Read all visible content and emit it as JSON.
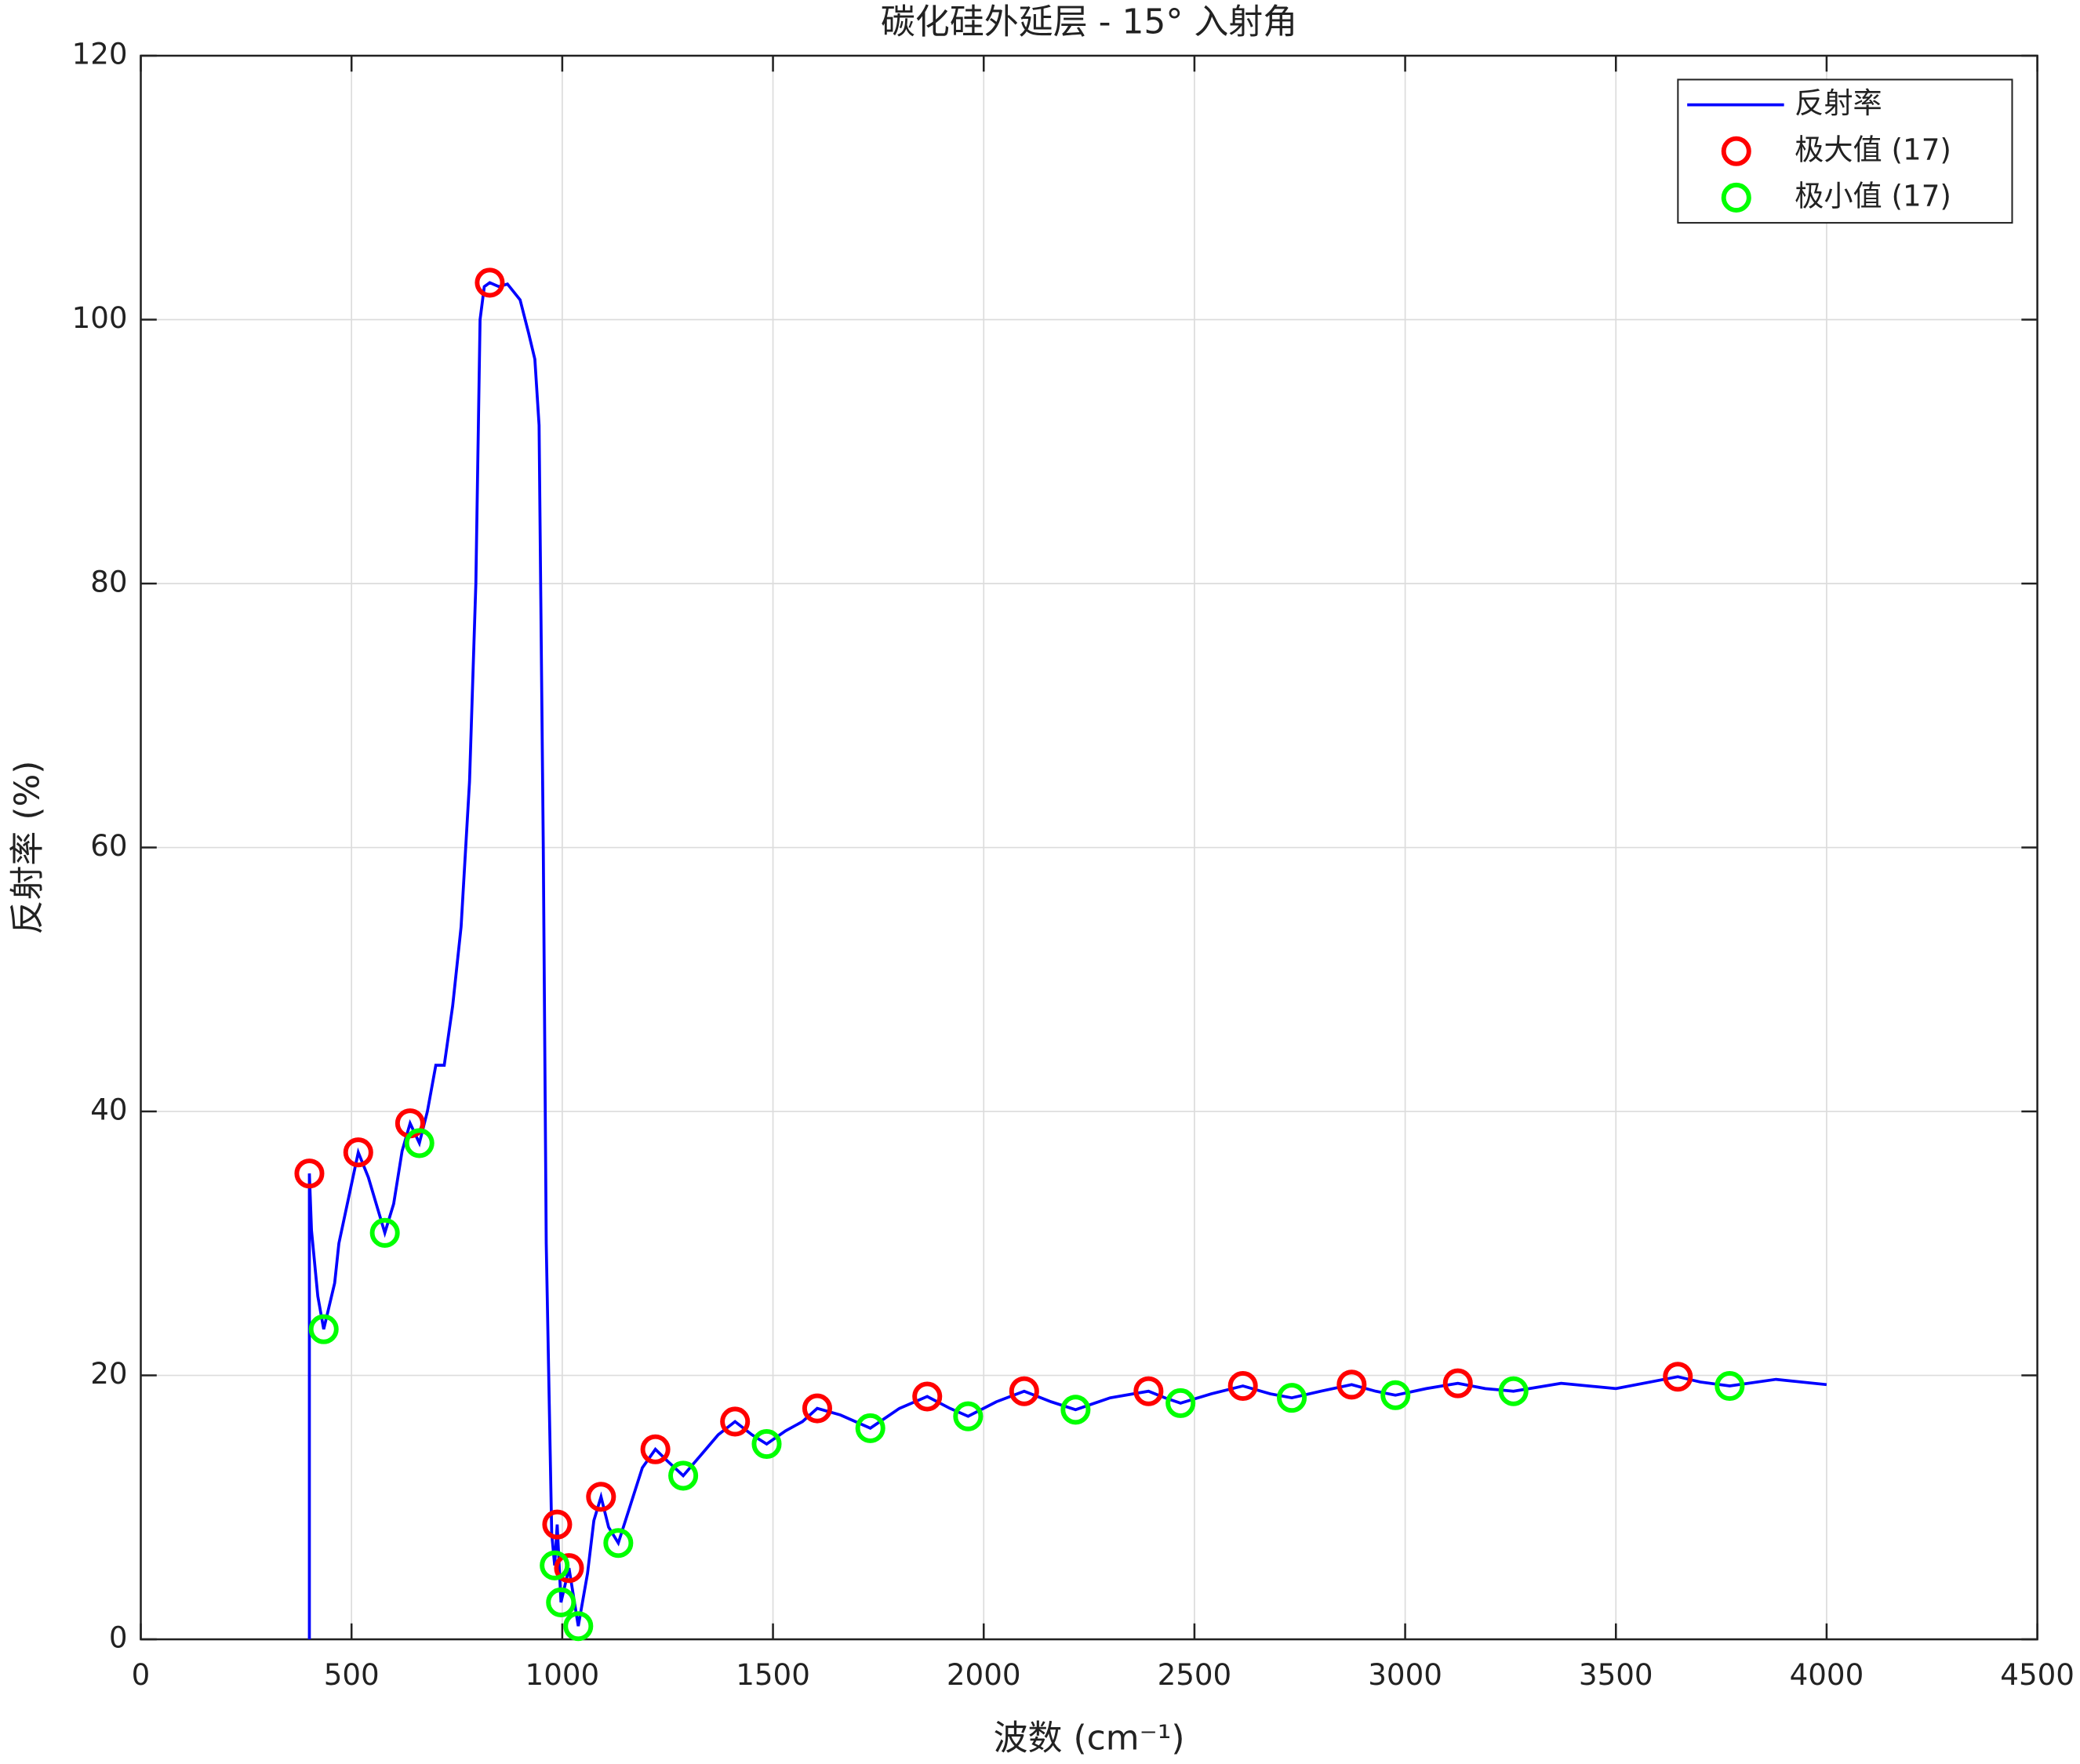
{
  "chart_data": {
    "type": "line",
    "title": "碳化硅外延层 - 15° 入射角",
    "xlabel": "波数 (cm⁻¹)",
    "ylabel": "反射率 (%)",
    "xlim": [
      0,
      4500
    ],
    "xticks": [
      0,
      500,
      1000,
      1500,
      2000,
      2500,
      3000,
      3500,
      4000,
      4500
    ],
    "ylim": [
      0,
      120
    ],
    "yticks": [
      0,
      20,
      40,
      60,
      80,
      100,
      120
    ],
    "grid": true,
    "legend": "upper right",
    "series": [
      {
        "name": "反射率",
        "color": "#0000ff",
        "kind": "line",
        "x": [
          400,
          400,
          405,
          420,
          434,
          460,
          470,
          516,
          540,
          579,
          600,
          620,
          639,
          661,
          680,
          700,
          720,
          740,
          760,
          780,
          795,
          805,
          815,
          828,
          850,
          870,
          900,
          920,
          935,
          945,
          955,
          962,
          975,
          982,
          988,
          997,
          1016,
          1038,
          1060,
          1075,
          1092,
          1110,
          1133,
          1160,
          1190,
          1221,
          1250,
          1287,
          1330,
          1370,
          1410,
          1450,
          1485,
          1530,
          1570,
          1605,
          1660,
          1731,
          1800,
          1866,
          1920,
          1963,
          2030,
          2096,
          2160,
          2218,
          2300,
          2391,
          2430,
          2467,
          2540,
          2615,
          2680,
          2731,
          2800,
          2873,
          2930,
          2977,
          3050,
          3125,
          3190,
          3257,
          3370,
          3500,
          3647,
          3700,
          3770,
          3880,
          4000
        ],
        "values": [
          0,
          35.3,
          31,
          26,
          23.5,
          27,
          30,
          36.9,
          35,
          30.8,
          33,
          37,
          39.1,
          37.6,
          40,
          43.5,
          43.5,
          48,
          54,
          65,
          80,
          100,
          102.5,
          102.8,
          102.5,
          102.7,
          101.5,
          99,
          97,
          92,
          60,
          30,
          8,
          5.6,
          8.7,
          2.8,
          5.4,
          1.0,
          5,
          9,
          10.8,
          8.5,
          7.3,
          10,
          13,
          14.4,
          13.5,
          12.4,
          14,
          15.5,
          16.5,
          15.5,
          14.8,
          15.8,
          16.5,
          17.5,
          17,
          16.0,
          17.5,
          18.4,
          17.5,
          16.9,
          18,
          18.8,
          18,
          17.4,
          18.3,
          18.8,
          18.3,
          17.9,
          18.6,
          19.2,
          18.6,
          18.3,
          18.8,
          19.3,
          18.8,
          18.5,
          19,
          19.4,
          19,
          18.8,
          19.4,
          19,
          19.9,
          19.5,
          19.2,
          19.7,
          19.3
        ]
      },
      {
        "name": "极大值 (17)",
        "color": "#ff0000",
        "kind": "marker",
        "x": [
          400,
          516,
          639,
          828,
          988,
          1016,
          1092,
          1221,
          1410,
          1605,
          1866,
          2096,
          2391,
          2615,
          2873,
          3125,
          3647
        ],
        "values": [
          35.3,
          36.9,
          39.1,
          102.8,
          8.7,
          5.4,
          10.8,
          14.4,
          16.5,
          17.5,
          18.4,
          18.8,
          18.8,
          19.2,
          19.3,
          19.4,
          19.9
        ]
      },
      {
        "name": "极小值 (17)",
        "color": "#00ff00",
        "kind": "marker",
        "x": [
          434,
          579,
          661,
          982,
          997,
          1038,
          1133,
          1287,
          1485,
          1731,
          1963,
          2218,
          2467,
          2731,
          2977,
          3257,
          3770
        ],
        "values": [
          23.5,
          30.8,
          37.6,
          5.6,
          2.8,
          1.0,
          7.3,
          12.4,
          14.8,
          16.0,
          16.9,
          17.4,
          17.9,
          18.3,
          18.5,
          18.8,
          19.2
        ]
      }
    ]
  }
}
